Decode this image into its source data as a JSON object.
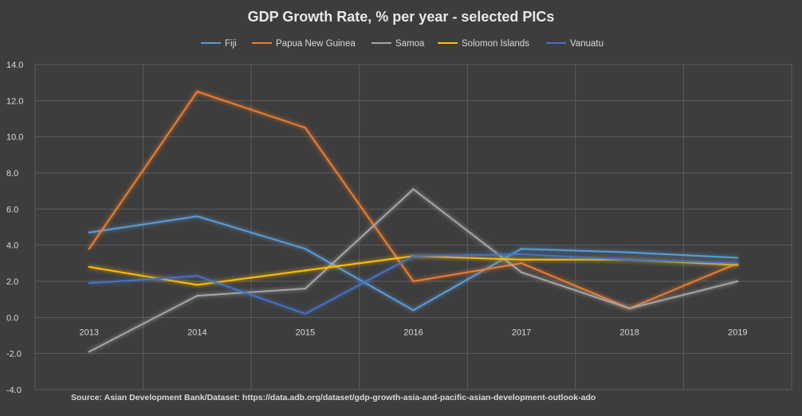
{
  "chart_data": {
    "type": "line",
    "title": "GDP Growth Rate, % per year - selected PICs",
    "xlabel": "",
    "ylabel": "",
    "categories": [
      "2013",
      "2014",
      "2015",
      "2016",
      "2017",
      "2018",
      "2019"
    ],
    "ylim": [
      -4.0,
      14.0
    ],
    "yticks": [
      "14.0",
      "12.0",
      "10.0",
      "8.0",
      "6.0",
      "4.0",
      "2.0",
      "0.0",
      "-2.0",
      "-4.0"
    ],
    "grid": true,
    "legend_position": "top",
    "series": [
      {
        "name": "Fiji",
        "color": "#5b9bd5",
        "values": [
          4.7,
          5.6,
          3.8,
          0.4,
          3.8,
          3.6,
          3.3
        ]
      },
      {
        "name": "Papua New Guinea",
        "color": "#ed7d31",
        "values": [
          3.8,
          12.5,
          10.5,
          2.0,
          3.0,
          0.5,
          3.0
        ]
      },
      {
        "name": "Samoa",
        "color": "#a5a5a5",
        "values": [
          -1.9,
          1.2,
          1.6,
          7.1,
          2.5,
          0.5,
          2.0
        ]
      },
      {
        "name": "Solomon Islands",
        "color": "#ffc000",
        "values": [
          2.8,
          1.8,
          2.6,
          3.4,
          3.2,
          3.2,
          2.9
        ]
      },
      {
        "name": "Vanuatu",
        "color": "#4472c4",
        "values": [
          1.9,
          2.3,
          0.2,
          3.4,
          3.5,
          3.2,
          3.0
        ]
      }
    ],
    "source": "Source: Asian Development Bank/Dataset: https://data.adb.org/dataset/gdp-growth-asia-and-pacific-asian-development-outlook-ado"
  }
}
